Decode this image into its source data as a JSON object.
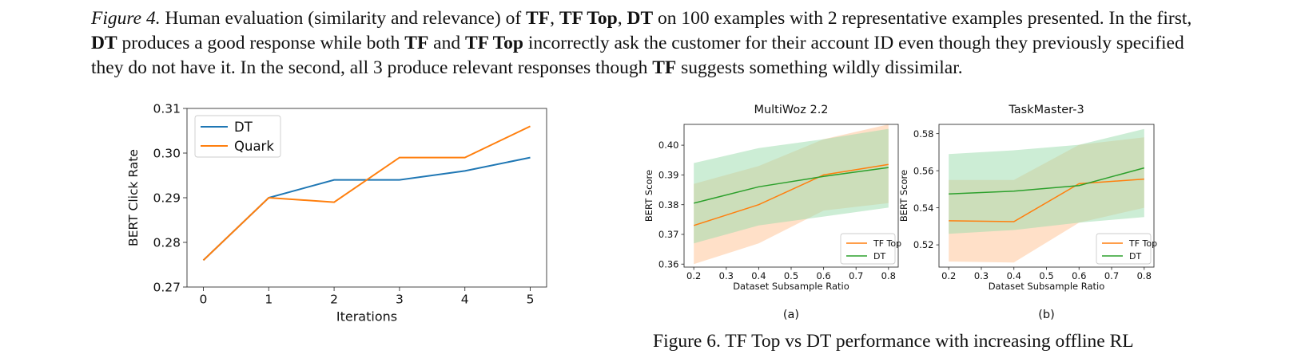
{
  "caption": {
    "label": "Figure 4.",
    "runs": [
      {
        "t": " Human evaluation (similarity and relevance) of ",
        "b": false
      },
      {
        "t": "TF",
        "b": true
      },
      {
        "t": ", ",
        "b": false
      },
      {
        "t": "TF Top",
        "b": true
      },
      {
        "t": ", ",
        "b": false
      },
      {
        "t": "DT",
        "b": true
      },
      {
        "t": " on 100 examples with 2 representative examples presented. In the first, ",
        "b": false
      },
      {
        "t": "DT",
        "b": true
      },
      {
        "t": " produces a good response while both ",
        "b": false
      },
      {
        "t": "TF",
        "b": true
      },
      {
        "t": " and ",
        "b": false
      },
      {
        "t": "TF Top",
        "b": true
      },
      {
        "t": " incorrectly ask the customer for their account ID even though they previously specified they do not have it. In the second, all 3 produce relevant responses though ",
        "b": false
      },
      {
        "t": "TF",
        "b": true
      },
      {
        "t": " suggests something wildly dissimilar.",
        "b": false
      }
    ]
  },
  "bottom_caption": "Figure 6. TF Top vs DT performance with increasing offline RL",
  "chart_data": [
    {
      "type": "line",
      "title": "",
      "xlabel": "Iterations",
      "ylabel": "BERT Click Rate",
      "x": [
        0,
        1,
        2,
        3,
        4,
        5
      ],
      "xlim": [
        -0.25,
        5.25
      ],
      "ylim": [
        0.27,
        0.31
      ],
      "yticks": [
        0.27,
        0.28,
        0.29,
        0.3,
        0.31
      ],
      "ytick_labels": [
        "0.27",
        "0.28",
        "0.29",
        "0.30",
        "0.31"
      ],
      "grid": false,
      "legend": "top-left",
      "series": [
        {
          "name": "DT",
          "color": "#1f77b4",
          "values": [
            0.276,
            0.29,
            0.294,
            0.294,
            0.296,
            0.299
          ]
        },
        {
          "name": "Quark",
          "color": "#ff7f0e",
          "values": [
            0.276,
            0.29,
            0.289,
            0.299,
            0.299,
            0.306
          ]
        }
      ]
    },
    {
      "type": "line",
      "title": "MultiWoz 2.2",
      "subcaption": "(a)",
      "xlabel": "Dataset Subsample Ratio",
      "ylabel": "BERT Score",
      "x": [
        0.2,
        0.4,
        0.6,
        0.8
      ],
      "xticks": [
        0.2,
        0.3,
        0.4,
        0.5,
        0.6,
        0.7,
        0.8
      ],
      "xlim": [
        0.17,
        0.83
      ],
      "ylim": [
        0.359,
        0.407
      ],
      "yticks": [
        0.36,
        0.37,
        0.38,
        0.39,
        0.4
      ],
      "ytick_labels": [
        "0.36",
        "0.37",
        "0.38",
        "0.39",
        "0.40"
      ],
      "legend": "lower-right",
      "series": [
        {
          "name": "TF Top",
          "color": "#ff7f0e",
          "band": "#ffc79a",
          "values": [
            0.373,
            0.38,
            0.39,
            0.3935
          ],
          "lower": [
            0.36,
            0.367,
            0.378,
            0.3805
          ],
          "upper": [
            0.387,
            0.393,
            0.402,
            0.407
          ]
        },
        {
          "name": "DT",
          "color": "#2ca02c",
          "band": "#99dcac",
          "values": [
            0.3805,
            0.386,
            0.3895,
            0.3925
          ],
          "lower": [
            0.367,
            0.373,
            0.376,
            0.379
          ],
          "upper": [
            0.394,
            0.399,
            0.402,
            0.4055
          ]
        }
      ]
    },
    {
      "type": "line",
      "title": "TaskMaster-3",
      "subcaption": "(b)",
      "xlabel": "Dataset Subsample Ratio",
      "ylabel": "BERT Score",
      "x": [
        0.2,
        0.4,
        0.6,
        0.8
      ],
      "xticks": [
        0.2,
        0.3,
        0.4,
        0.5,
        0.6,
        0.7,
        0.8
      ],
      "xlim": [
        0.17,
        0.83
      ],
      "ylim": [
        0.508,
        0.585
      ],
      "yticks": [
        0.52,
        0.54,
        0.56,
        0.58
      ],
      "ytick_labels": [
        "0.52",
        "0.54",
        "0.56",
        "0.58"
      ],
      "legend": "lower-right",
      "series": [
        {
          "name": "TF Top",
          "color": "#ff7f0e",
          "band": "#ffc79a",
          "values": [
            0.533,
            0.5325,
            0.553,
            0.5555
          ],
          "lower": [
            0.511,
            0.5105,
            0.532,
            0.54
          ],
          "upper": [
            0.555,
            0.555,
            0.574,
            0.578
          ]
        },
        {
          "name": "DT",
          "color": "#2ca02c",
          "band": "#99dcac",
          "values": [
            0.5475,
            0.549,
            0.552,
            0.5615
          ],
          "lower": [
            0.526,
            0.528,
            0.532,
            0.535
          ],
          "upper": [
            0.569,
            0.571,
            0.574,
            0.5825
          ]
        }
      ]
    }
  ]
}
